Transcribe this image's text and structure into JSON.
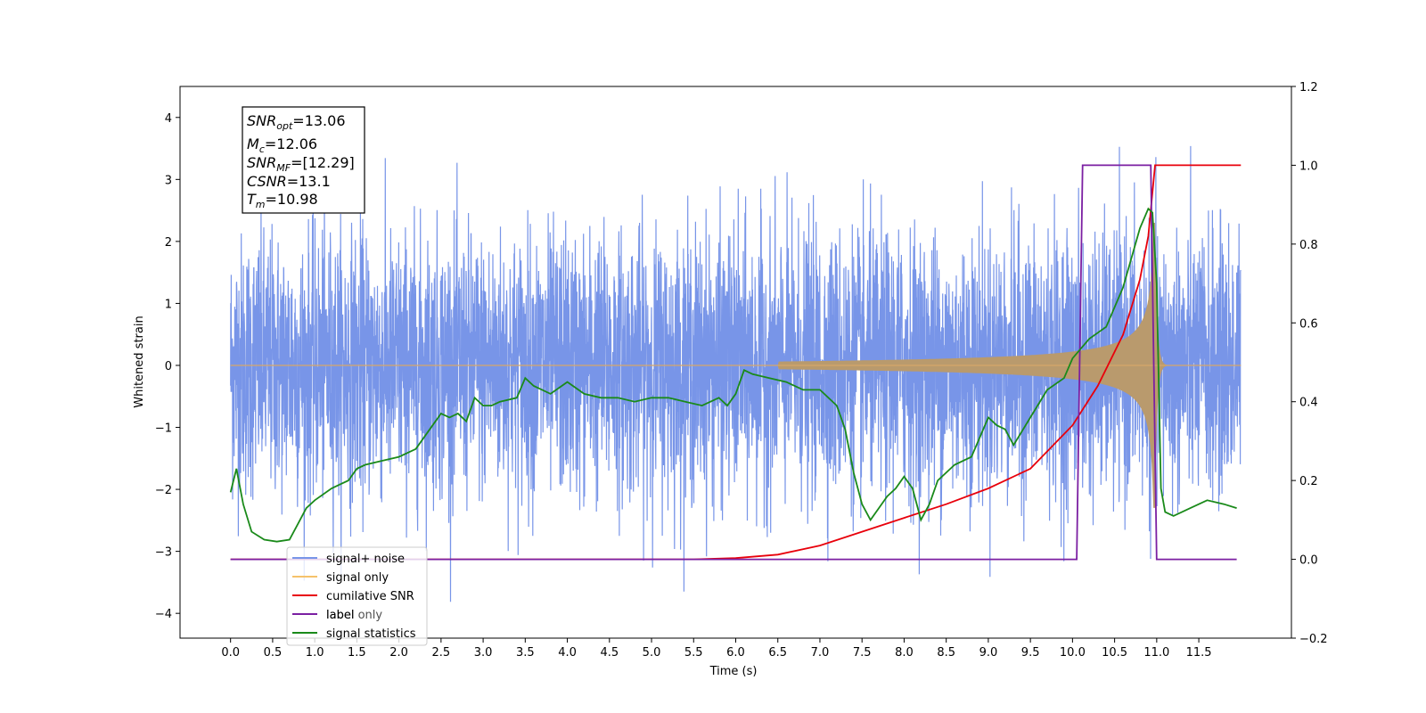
{
  "chart_data": {
    "type": "line",
    "xlabel": "Time (s)",
    "ylabel": "Whitened strain",
    "xlim": [
      -0.6,
      12.6
    ],
    "ylim_left": [
      -4.4,
      4.5
    ],
    "ylim_right": [
      -0.2,
      1.2
    ],
    "x_ticks": [
      "0.0",
      "0.5",
      "1.0",
      "1.5",
      "2.0",
      "2.5",
      "3.0",
      "3.5",
      "4.0",
      "4.5",
      "5.0",
      "5.5",
      "6.0",
      "6.5",
      "7.0",
      "7.5",
      "8.0",
      "8.5",
      "9.0",
      "9.5",
      "10.0",
      "10.5",
      "11.0",
      "11.5"
    ],
    "left_y_ticks": [
      "−4",
      "−3",
      "−2",
      "−1",
      "0",
      "1",
      "2",
      "3",
      "4"
    ],
    "right_y_ticks": [
      "−0.2",
      "0.0",
      "0.2",
      "0.4",
      "0.6",
      "0.8",
      "1.0",
      "1.2"
    ],
    "annotation": {
      "lines": [
        {
          "base": "SNR",
          "sub": "opt",
          "value": "=13.06"
        },
        {
          "base": "M",
          "sub": "c",
          "value": "=12.06"
        },
        {
          "base": "SNR",
          "sub": "MF",
          "value": "=[12.29]"
        },
        {
          "base": "CSNR",
          "sub": "",
          "value": "=13.1"
        },
        {
          "base": "T",
          "sub": "m",
          "value": "=10.98"
        }
      ]
    },
    "legend_position": "lower-left",
    "series": [
      {
        "name": "signal+ noise",
        "color": "#7895e8",
        "axis": "left",
        "description": "noisy strain, amplitude ~±3 with spikes to ~4.1 and ~-3.9"
      },
      {
        "name": "signal only",
        "color": "#f5c26b",
        "axis": "left",
        "description": "chirp growing to ~±2.3 at t≈10.98 then ringdown"
      },
      {
        "name": "cumilative SNR",
        "color": "#e8000b",
        "axis": "right",
        "x": [
          0.0,
          5.5,
          6.0,
          6.5,
          7.0,
          7.5,
          8.0,
          8.5,
          9.0,
          9.5,
          10.0,
          10.3,
          10.6,
          10.8,
          10.9,
          10.98,
          11.0,
          12.0
        ],
        "y": [
          0.0,
          0.0,
          0.003,
          0.012,
          0.035,
          0.07,
          0.105,
          0.14,
          0.18,
          0.23,
          0.34,
          0.44,
          0.57,
          0.71,
          0.82,
          1.0,
          1.0,
          1.0
        ]
      },
      {
        "name": "label",
        "color": "#7b1fa2",
        "axis": "right",
        "x": [
          0.0,
          10.05,
          10.12,
          10.93,
          11.0,
          11.95
        ],
        "y": [
          0.0,
          0.0,
          1.0,
          1.0,
          0.0,
          0.0
        ]
      },
      {
        "name": "label only",
        "color": "#999999",
        "axis": "right",
        "hidden": true
      },
      {
        "name": "signal statistics",
        "color": "#1a8a1a",
        "axis": "right",
        "x": [
          0.0,
          0.07,
          0.15,
          0.25,
          0.4,
          0.55,
          0.7,
          0.8,
          0.9,
          1.0,
          1.2,
          1.4,
          1.5,
          1.6,
          1.8,
          2.0,
          2.2,
          2.4,
          2.5,
          2.6,
          2.7,
          2.8,
          2.9,
          3.0,
          3.1,
          3.2,
          3.4,
          3.5,
          3.6,
          3.8,
          4.0,
          4.2,
          4.4,
          4.6,
          4.8,
          5.0,
          5.2,
          5.4,
          5.6,
          5.8,
          5.9,
          6.0,
          6.1,
          6.2,
          6.4,
          6.6,
          6.8,
          7.0,
          7.2,
          7.3,
          7.4,
          7.5,
          7.6,
          7.7,
          7.8,
          7.9,
          8.0,
          8.1,
          8.2,
          8.3,
          8.4,
          8.6,
          8.8,
          9.0,
          9.1,
          9.2,
          9.3,
          9.5,
          9.7,
          9.9,
          10.0,
          10.2,
          10.4,
          10.6,
          10.8,
          10.9,
          10.95,
          11.0,
          11.05,
          11.1,
          11.2,
          11.4,
          11.6,
          11.8,
          11.95
        ],
        "y": [
          0.17,
          0.23,
          0.14,
          0.07,
          0.05,
          0.045,
          0.05,
          0.09,
          0.13,
          0.15,
          0.18,
          0.2,
          0.23,
          0.24,
          0.25,
          0.26,
          0.28,
          0.34,
          0.37,
          0.36,
          0.37,
          0.35,
          0.41,
          0.39,
          0.39,
          0.4,
          0.41,
          0.46,
          0.44,
          0.42,
          0.45,
          0.42,
          0.41,
          0.41,
          0.4,
          0.41,
          0.41,
          0.4,
          0.39,
          0.41,
          0.39,
          0.42,
          0.48,
          0.47,
          0.46,
          0.45,
          0.43,
          0.43,
          0.39,
          0.33,
          0.22,
          0.14,
          0.1,
          0.13,
          0.16,
          0.18,
          0.21,
          0.18,
          0.1,
          0.14,
          0.2,
          0.24,
          0.26,
          0.36,
          0.34,
          0.33,
          0.29,
          0.36,
          0.43,
          0.46,
          0.51,
          0.56,
          0.59,
          0.69,
          0.84,
          0.89,
          0.88,
          0.7,
          0.18,
          0.12,
          0.11,
          0.13,
          0.15,
          0.14,
          0.13
        ]
      }
    ]
  }
}
